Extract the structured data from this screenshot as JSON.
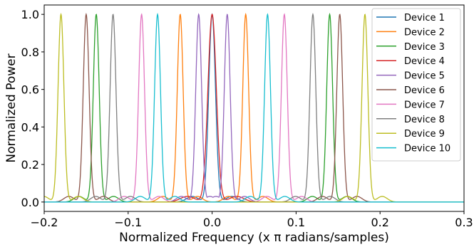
{
  "chart_data": {
    "type": "line",
    "title": "",
    "xlabel": "Normalized Frequency (x π radians/samples)",
    "ylabel": "Normalized Power",
    "xlim": [
      -0.2,
      0.3
    ],
    "ylim": [
      -0.05,
      1.05
    ],
    "x_ticks": [
      -0.2,
      -0.1,
      0.0,
      0.1,
      0.2,
      0.3
    ],
    "x_tick_labels": [
      "−0.2",
      "−0.1",
      "0.0",
      "0.1",
      "0.2",
      "0.3"
    ],
    "y_ticks": [
      0.0,
      0.2,
      0.4,
      0.6,
      0.8,
      1.0
    ],
    "y_tick_labels": [
      "0.0",
      "0.2",
      "0.4",
      "0.6",
      "0.8",
      "1.0"
    ],
    "grid": false,
    "legend_position": "top-right",
    "series": [
      {
        "name": "Device 1",
        "color": "#1f77b4",
        "peaks": [
          0.0
        ],
        "peak_value": 1.0,
        "width": 0.004
      },
      {
        "name": "Device 2",
        "color": "#ff7f0e",
        "peaks": [
          -0.038,
          0.04
        ],
        "peak_value": 1.0,
        "width": 0.0035
      },
      {
        "name": "Device 3",
        "color": "#2ca02c",
        "peaks": [
          -0.138,
          0.14
        ],
        "peak_value": 1.0,
        "width": 0.0035
      },
      {
        "name": "Device 4",
        "color": "#d62728",
        "peaks": [
          0.0
        ],
        "peak_value": 1.0,
        "width": 0.005
      },
      {
        "name": "Device 5",
        "color": "#9467bd",
        "peaks": [
          -0.016,
          0.018
        ],
        "peak_value": 1.0,
        "width": 0.0035
      },
      {
        "name": "Device 6",
        "color": "#8c564b",
        "peaks": [
          -0.15,
          0.152
        ],
        "peak_value": 1.0,
        "width": 0.0035
      },
      {
        "name": "Device 7",
        "color": "#e377c2",
        "peaks": [
          -0.084,
          0.086
        ],
        "peak_value": 1.0,
        "width": 0.0035
      },
      {
        "name": "Device 8",
        "color": "#7f7f7f",
        "peaks": [
          -0.118,
          0.12
        ],
        "peak_value": 1.0,
        "width": 0.0035
      },
      {
        "name": "Device 9",
        "color": "#bcbd22",
        "peaks": [
          -0.18,
          0.182
        ],
        "peak_value": 1.0,
        "width": 0.0035
      },
      {
        "name": "Device 10",
        "color": "#17becf",
        "peaks": [
          -0.065,
          0.066
        ],
        "peak_value": 1.0,
        "width": 0.0035
      }
    ]
  }
}
